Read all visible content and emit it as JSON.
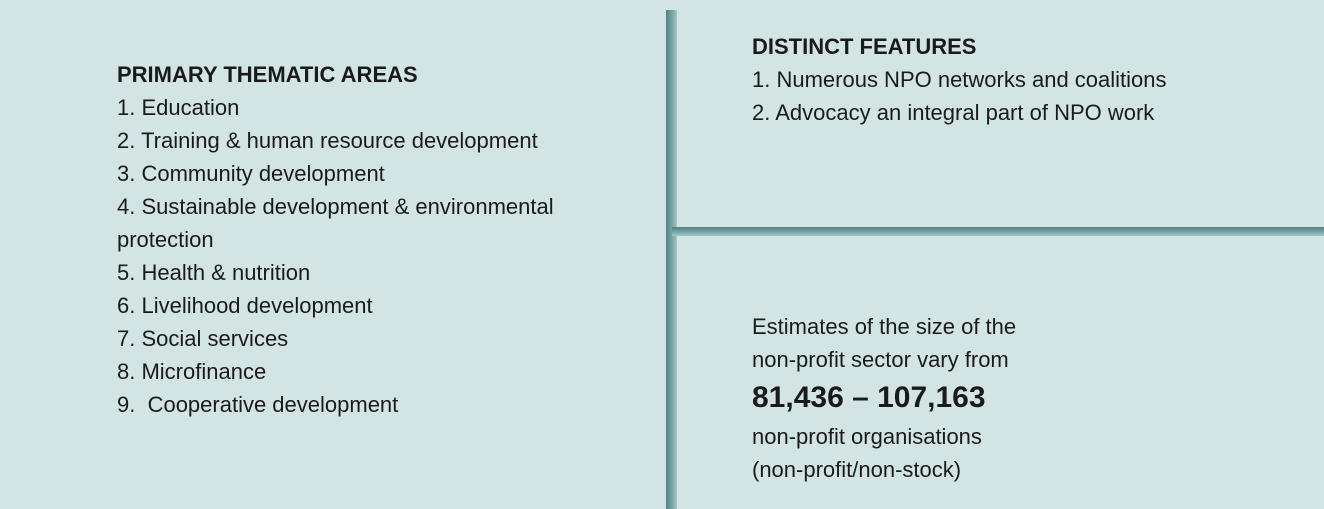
{
  "left": {
    "title": "PRIMARY THEMATIC AREAS",
    "items": [
      "1. Education",
      "2. Training & human resource development",
      "3. Community development",
      "4. Sustainable development & environmental protection",
      "5. Health & nutrition",
      "6. Livelihood development",
      "7. Social services",
      "8. Microfinance",
      "9.  Cooperative development"
    ]
  },
  "right_top": {
    "title": "DISTINCT FEATURES",
    "items": [
      "1. Numerous NPO networks and coalitions",
      "2. Advocacy an integral part of NPO work"
    ]
  },
  "right_bottom": {
    "intro": [
      "Estimates of the size of the",
      "non-profit sector vary from"
    ],
    "range": "81,436 – 107,163",
    "outro": [
      "non-profit organisations",
      "(non-profit/non-stock)"
    ]
  }
}
